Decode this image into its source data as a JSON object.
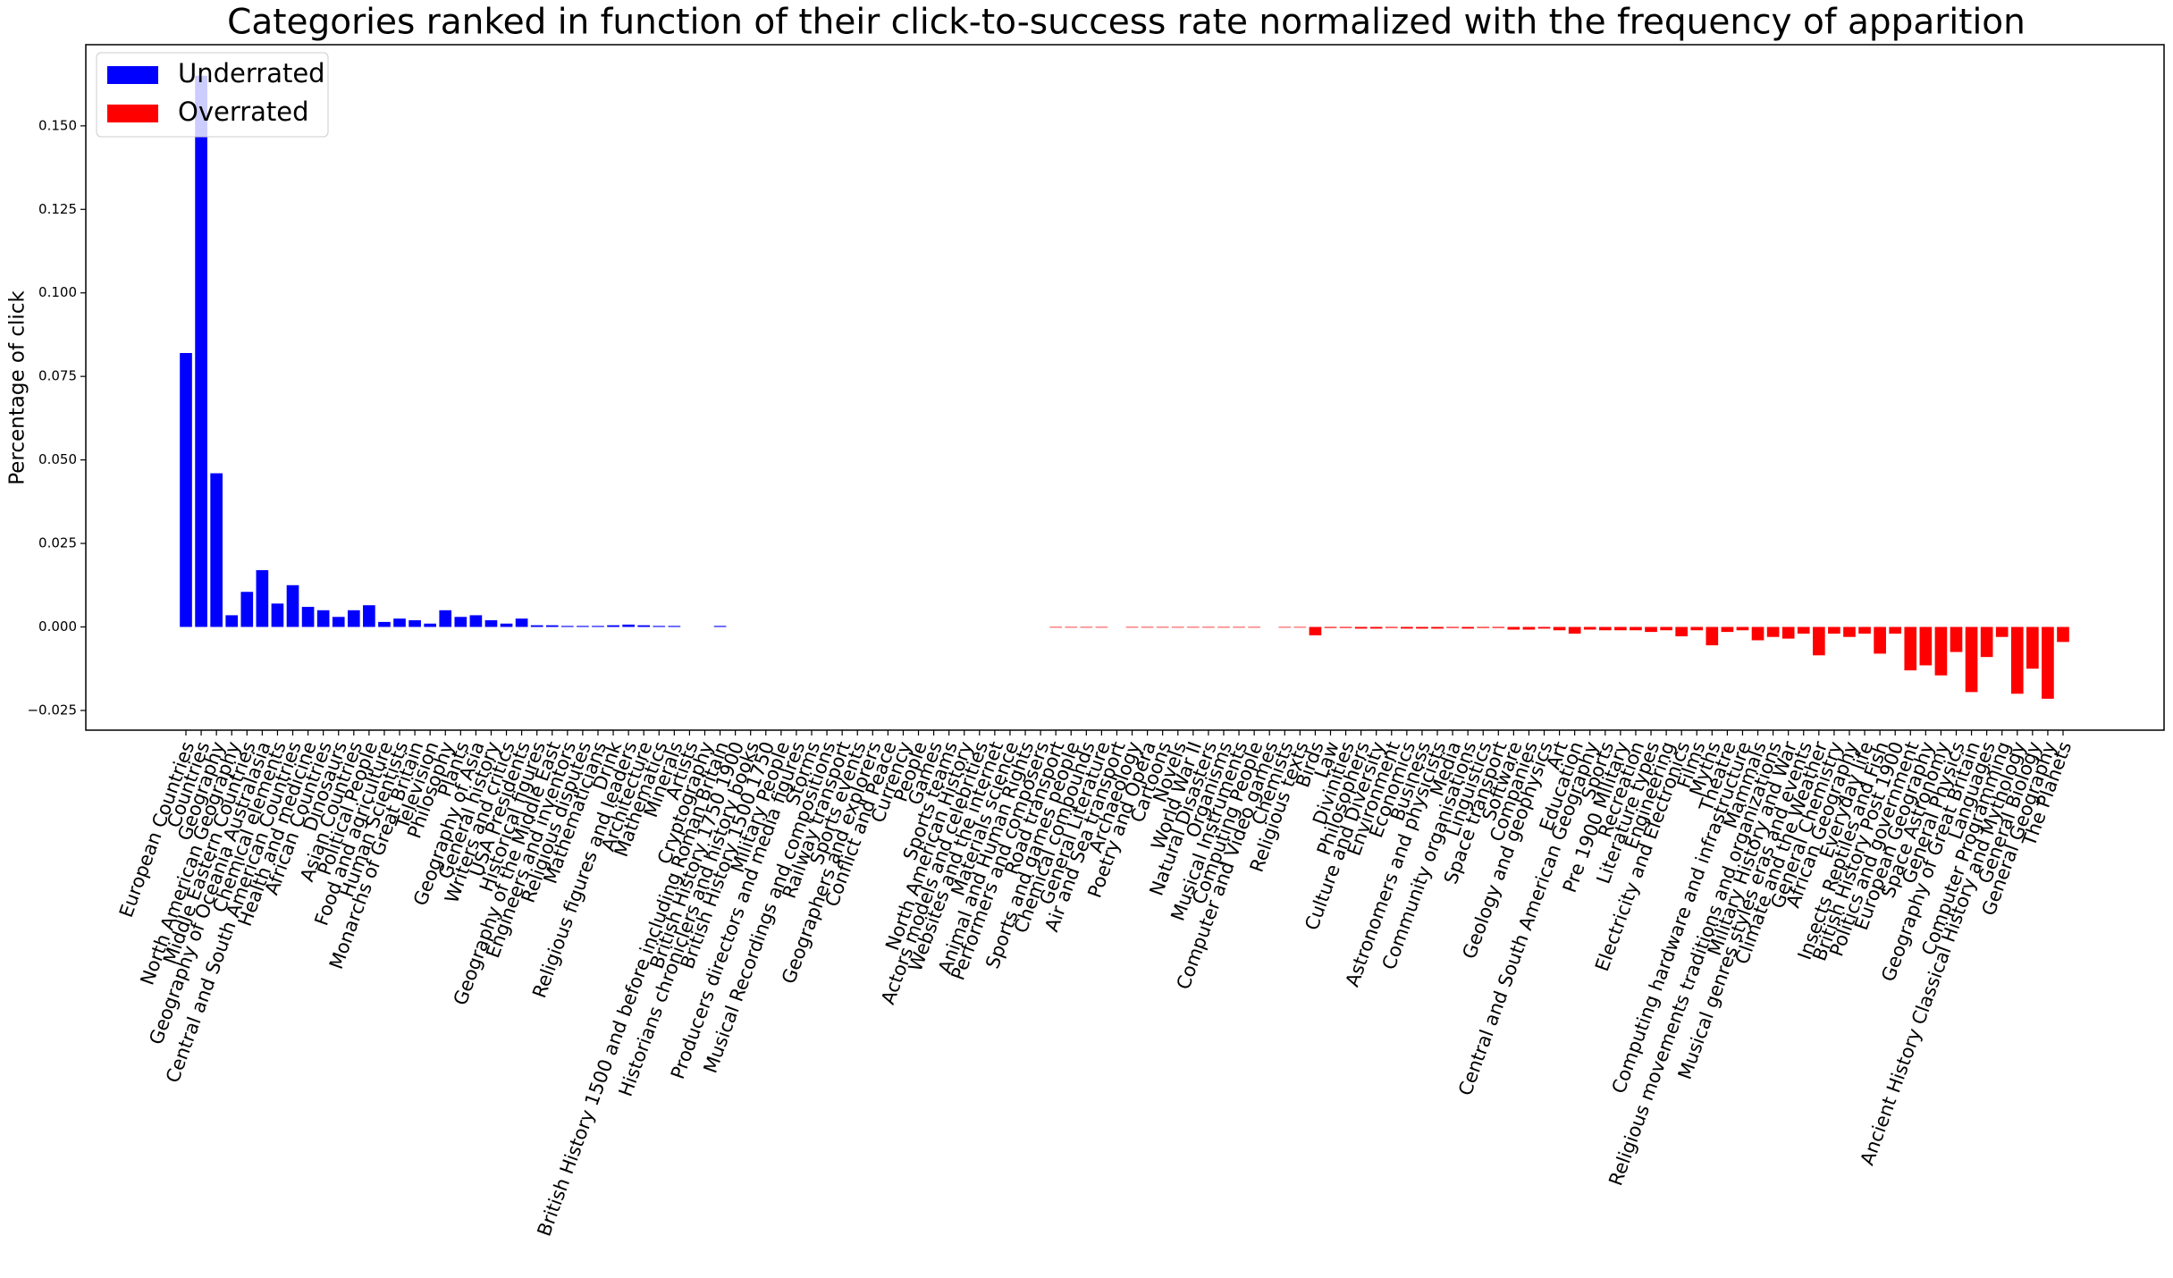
{
  "chart_data": {
    "type": "bar",
    "title": "Categories ranked in function of their click-to-success rate normalized with the frequency of apparition",
    "y_label": "Percentage of click",
    "legend": [
      {
        "name": "Underrated",
        "color": "#0000ff"
      },
      {
        "name": "Overrated",
        "color": "#ff0000"
      }
    ],
    "legend_position": "upper left",
    "categories": [
      "European Countries",
      "Countries",
      "Geography",
      "North American Geography",
      "Middle Eastern Countries",
      "Geography of Oceania Australasia",
      "Chemical elements",
      "Central and South American Countries",
      "Health and medicine",
      "African Countries",
      "Dinosaurs",
      "Asian Countries",
      "Political People",
      "Food and agriculture",
      "Human Scientists",
      "Monarchs of Great Britain",
      "Television",
      "Philosophy",
      "Plants",
      "Geography of Asia",
      "General history",
      "Writers and critics",
      "USA Presidents",
      "Historical figures",
      "Geography of the Middle East",
      "Engineers and inventors",
      "Religious disputes",
      "Mathematicians",
      "Drink",
      "Religious figures and leaders",
      "Architecture",
      "Mathematics",
      "Minerals",
      "Artists",
      "Cryptography",
      "British History 1500 and before including Roman Britain",
      "British History 1750 1900",
      "Historians chroniclers and history books",
      "British History 1500 1750",
      "Military People",
      "Producers directors and media figures",
      "Storms",
      "Musical Recordings and compositions",
      "Railway transport",
      "Sports events",
      "Geographers and explorers",
      "Conflict and Peace",
      "Currency",
      "People",
      "Games",
      "Sports teams",
      "North American History",
      "Actors models and celebrities",
      "Websites and the internet",
      "Materials science",
      "Animal and Human Rights",
      "Performers and composers",
      "Road transport",
      "Sports and games people",
      "Chemical compounds",
      "General Literature",
      "Air and Sea transport",
      "Archaeology",
      "Poetry and Opera",
      "Cartoons",
      "Novels",
      "World War II",
      "Natural Disasters",
      "Organisms",
      "Musical Instruments",
      "Computing People",
      "Computer and Video games",
      "Chemists",
      "Religious texts",
      "Birds",
      "Law",
      "Divinities",
      "Philosophers",
      "Culture and Diversity",
      "Environment",
      "Economics",
      "Business",
      "Astronomers and physicists",
      "Media",
      "Community organisations",
      "Linguistics",
      "Space transport",
      "Software",
      "Companies",
      "Geology and geophysics",
      "Art",
      "Education",
      "Central and South American Geography",
      "Sports",
      "Pre 1900 Military",
      "Recreation",
      "Literature types",
      "Engineering",
      "Electricity and Electronics",
      "Films",
      "Myths",
      "Theatre",
      "Computing hardware and infrastructure",
      "Mammals",
      "Religious movements traditions and organizations",
      "Military History and War",
      "Musical genres styles eras and events",
      "Climate and the Weather",
      "General Chemistry",
      "African Geography",
      "Everyday life",
      "Insects Reptiles and Fish",
      "British History Post 1900",
      "Politics and government",
      "European Geography",
      "Space Astronomy",
      "General Physics",
      "Geography of Great Britain",
      "Languages",
      "Computer Programming",
      "Ancient History Classical History and Mythology",
      "General Biology",
      "General Geography",
      "The Planets"
    ],
    "values": [
      0.082,
      0.165,
      0.046,
      0.0035,
      0.0105,
      0.017,
      0.007,
      0.0125,
      0.006,
      0.005,
      0.003,
      0.005,
      0.0065,
      0.0015,
      0.0025,
      0.002,
      0.001,
      0.005,
      0.003,
      0.0035,
      0.002,
      0.001,
      0.0025,
      0.0005,
      0.0005,
      0.0003,
      0.0003,
      0.0003,
      0.0005,
      0.0007,
      0.0005,
      0.0003,
      0.0003,
      0,
      0,
      0.0003,
      0,
      0,
      0,
      0,
      0,
      0,
      0,
      0,
      0,
      0,
      0,
      0,
      0,
      0,
      0,
      0,
      0,
      0,
      0,
      0,
      0,
      -0.0002,
      -0.0002,
      -0.0002,
      -0.0002,
      0,
      -0.0002,
      -0.0002,
      -0.0002,
      -0.0002,
      -0.0002,
      -0.0002,
      -0.0002,
      -0.0002,
      -0.0002,
      0,
      -0.0002,
      -0.0002,
      -0.0025,
      -0.0003,
      -0.0003,
      -0.0005,
      -0.0005,
      -0.0003,
      -0.0005,
      -0.0005,
      -0.0005,
      -0.0003,
      -0.0005,
      -0.0003,
      -0.0003,
      -0.0008,
      -0.0008,
      -0.0005,
      -0.001,
      -0.002,
      -0.0008,
      -0.001,
      -0.001,
      -0.001,
      -0.0015,
      -0.001,
      -0.0028,
      -0.001,
      -0.0055,
      -0.0015,
      -0.001,
      -0.004,
      -0.003,
      -0.0035,
      -0.002,
      -0.0085,
      -0.002,
      -0.003,
      -0.002,
      -0.008,
      -0.002,
      -0.013,
      -0.0115,
      -0.0145,
      -0.0075,
      -0.0195,
      -0.009,
      -0.003,
      -0.02,
      -0.0125,
      -0.0215,
      -0.0045
    ],
    "ylim": [
      -0.0309,
      0.1743
    ],
    "yticks": [
      {
        "value": -0.025,
        "label": "−0.025"
      },
      {
        "value": 0,
        "label": "0.000"
      },
      0.025,
      {
        "value": 0.05,
        "label": "0.050"
      },
      0.075,
      {
        "value": 0.1,
        "label": "0.100"
      },
      0.125,
      {
        "value": 0.15,
        "label": "0.150"
      }
    ]
  }
}
